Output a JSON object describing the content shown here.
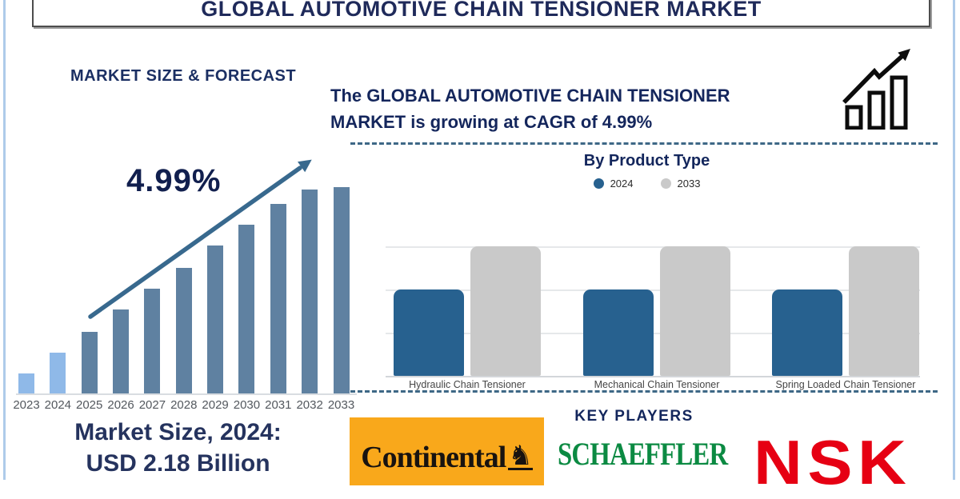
{
  "title_bar": {
    "title": "GLOBAL AUTOMOTIVE CHAIN TENSIONER MARKET"
  },
  "market_size_section": {
    "heading": "MARKET SIZE & FORECAST",
    "cagr_annotation": "4.99%",
    "market_size_label_line1": "Market Size, 2024:",
    "market_size_label_line2": "USD 2.18 Billion"
  },
  "growth_banner": {
    "line1": "The GLOBAL AUTOMOTIVE CHAIN TENSIONER",
    "line2": "MARKET is growing at CAGR of 4.99%",
    "icon": "growth-bars-arrow-icon"
  },
  "product_type_section": {
    "title": "By Product Type",
    "legend": [
      {
        "label": "2024",
        "color": "#27618F"
      },
      {
        "label": "2033",
        "color": "#C9C9C9"
      }
    ]
  },
  "key_players_section": {
    "heading": "KEY PLAYERS",
    "players": [
      {
        "name": "Continental",
        "brand_color": "#F9A81B",
        "icon": "rearing-horse-icon"
      },
      {
        "name": "SCHAEFFLER",
        "brand_color": "#0B8A42"
      },
      {
        "name": "NSK",
        "brand_color": "#E60013"
      }
    ]
  },
  "chart_data": [
    {
      "id": "market-size-forecast",
      "type": "bar",
      "title": "MARKET SIZE & FORECAST",
      "categories": [
        "2023",
        "2024",
        "2025",
        "2026",
        "2027",
        "2028",
        "2029",
        "2030",
        "2031",
        "2032",
        "2033"
      ],
      "values_relative_pct": [
        10,
        20,
        30,
        41,
        51,
        61,
        72,
        82,
        92,
        99,
        100
      ],
      "annotation": "4.99%",
      "xlabel": "",
      "ylabel": "",
      "axis_labels_shown": "x only, no y-axis",
      "bar_colors": {
        "historical": "#8FB9E8",
        "forecast": "#5F81A1"
      },
      "note": "stylized pictogram bars with upward trend arrow; 2023-2024 shown lighter"
    },
    {
      "id": "by-product-type",
      "type": "bar",
      "title": "By Product Type",
      "categories": [
        "Hydraulic Chain Tensioner",
        "Mechanical Chain Tensioner",
        "Spring Loaded Chain Tensioner"
      ],
      "series": [
        {
          "name": "2024",
          "color": "#27618F",
          "values_gridline_units": [
            2,
            2,
            2
          ]
        },
        {
          "name": "2033",
          "color": "#C9C9C9",
          "values_gridline_units": [
            3,
            3,
            3
          ]
        }
      ],
      "ylim": [
        0,
        3
      ],
      "grid": true,
      "legend_position": "top",
      "note": "no numeric y-axis labels shown; 2033 bars reach top gridline"
    }
  ],
  "colors": {
    "navy_text": "#14265C",
    "dashed_divider": "#3E6886",
    "trend_arrow": "#38698E",
    "edge_accent": "#AECBEA"
  }
}
